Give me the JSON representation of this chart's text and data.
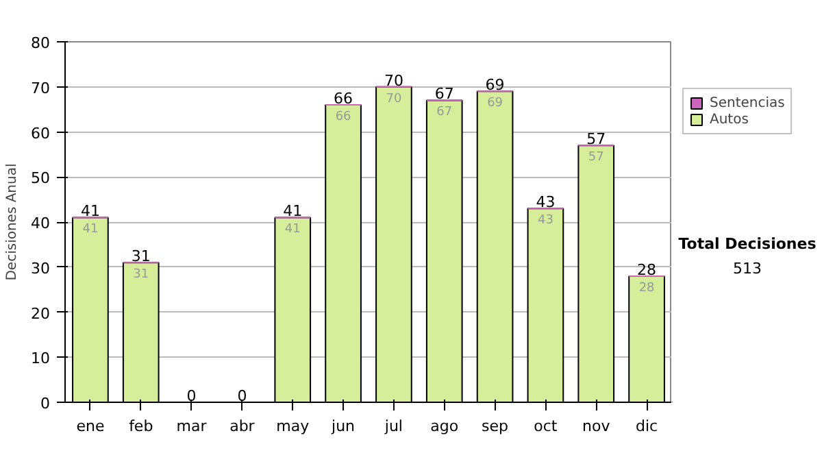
{
  "chart_data": {
    "type": "bar",
    "stacked": true,
    "ylabel": "Decisiones Anual",
    "categories": [
      "ene",
      "feb",
      "mar",
      "abr",
      "may",
      "jun",
      "jul",
      "ago",
      "sep",
      "oct",
      "nov",
      "dic"
    ],
    "series": [
      {
        "name": "Autos",
        "color": "#d6ee9a",
        "values": [
          41,
          31,
          0,
          0,
          41,
          66,
          70,
          67,
          69,
          43,
          57,
          28
        ],
        "value_labels": [
          "41",
          "31",
          null,
          null,
          "41",
          "66",
          "70",
          "67",
          "69",
          "43",
          "57",
          "28"
        ]
      },
      {
        "name": "Sentencias",
        "color": "#cc66bb",
        "values": [
          0,
          0,
          0,
          0,
          0,
          0,
          0,
          0,
          0,
          0,
          0,
          0
        ]
      }
    ],
    "totals": [
      "41",
      "31",
      "0",
      "0",
      "41",
      "66",
      "70",
      "67",
      "69",
      "43",
      "57",
      "28"
    ],
    "ylim": [
      0,
      80
    ],
    "yticks": [
      0,
      10,
      20,
      30,
      40,
      50,
      60,
      70,
      80
    ],
    "grid": "y",
    "legend": "right",
    "annotations": [
      "Total Decisiones",
      "513"
    ]
  }
}
